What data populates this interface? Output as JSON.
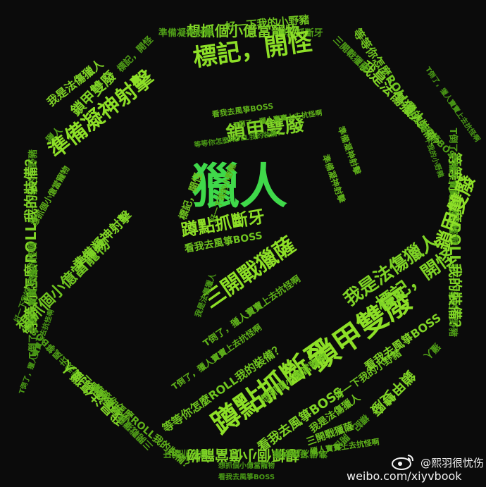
{
  "image": {
    "background": "#0b0b0b",
    "colors": {
      "bright": "#8ddf27",
      "mid": "#5fb21a",
      "dim": "#2f6a0f",
      "center": "#3fd94a"
    }
  },
  "words": [
    {
      "text": "獵人"
    },
    {
      "text": "鎖甲雙廢"
    },
    {
      "text": "標記，開怪"
    },
    {
      "text": "準備凝神射擊"
    },
    {
      "text": "想抓個小億當寵物"
    },
    {
      "text": "蹲點抓斷牙"
    },
    {
      "text": "三開戰獵薩"
    },
    {
      "text": "我是法傷獵人"
    },
    {
      "text": "看我去風箏BOSS"
    },
    {
      "text": "T倒了，獵人寶寶上去抗怪啊"
    },
    {
      "text": "等等你怎麼ROLL我的裝備？"
    },
    {
      "text": "好一下我的小野豬"
    }
  ],
  "watermark": {
    "handle": "@熙羽很忧伤",
    "url": "weibo.com/xiyvbook",
    "icon": "weibo-logo-icon"
  }
}
